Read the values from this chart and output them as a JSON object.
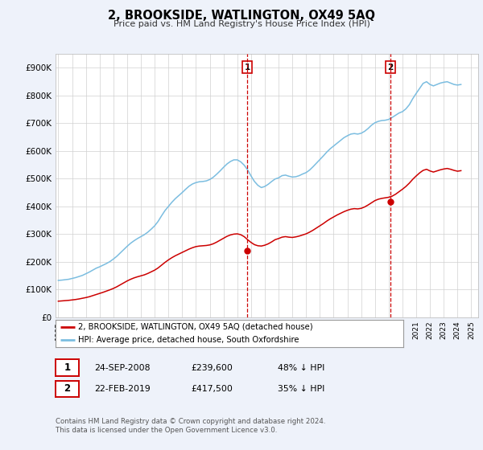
{
  "title": "2, BROOKSIDE, WATLINGTON, OX49 5AQ",
  "subtitle": "Price paid vs. HM Land Registry's House Price Index (HPI)",
  "hpi_color": "#7bbde0",
  "price_color": "#cc0000",
  "annotation_color": "#cc0000",
  "bg_color": "#eef2fa",
  "plot_bg": "#ffffff",
  "ylim": [
    0,
    950000
  ],
  "yticks": [
    0,
    100000,
    200000,
    300000,
    400000,
    500000,
    600000,
    700000,
    800000,
    900000
  ],
  "ytick_labels": [
    "£0",
    "£100K",
    "£200K",
    "£300K",
    "£400K",
    "£500K",
    "£600K",
    "£700K",
    "£800K",
    "£900K"
  ],
  "xlim_start": 1994.8,
  "xlim_end": 2025.5,
  "xtick_years": [
    1995,
    1996,
    1997,
    1998,
    1999,
    2000,
    2001,
    2002,
    2003,
    2004,
    2005,
    2006,
    2007,
    2008,
    2009,
    2010,
    2011,
    2012,
    2013,
    2014,
    2015,
    2016,
    2017,
    2018,
    2019,
    2020,
    2021,
    2022,
    2023,
    2024,
    2025
  ],
  "purchase1_x": 2008.73,
  "purchase1_y": 239600,
  "purchase1_label": "1",
  "purchase2_x": 2019.13,
  "purchase2_y": 417500,
  "purchase2_label": "2",
  "legend_label1": "2, BROOKSIDE, WATLINGTON, OX49 5AQ (detached house)",
  "legend_label2": "HPI: Average price, detached house, South Oxfordshire",
  "table_row1": [
    "1",
    "24-SEP-2008",
    "£239,600",
    "48% ↓ HPI"
  ],
  "table_row2": [
    "2",
    "22-FEB-2019",
    "£417,500",
    "35% ↓ HPI"
  ],
  "footer": "Contains HM Land Registry data © Crown copyright and database right 2024.\nThis data is licensed under the Open Government Licence v3.0.",
  "hpi_years": [
    1995.0,
    1995.25,
    1995.5,
    1995.75,
    1996.0,
    1996.25,
    1996.5,
    1996.75,
    1997.0,
    1997.25,
    1997.5,
    1997.75,
    1998.0,
    1998.25,
    1998.5,
    1998.75,
    1999.0,
    1999.25,
    1999.5,
    1999.75,
    2000.0,
    2000.25,
    2000.5,
    2000.75,
    2001.0,
    2001.25,
    2001.5,
    2001.75,
    2002.0,
    2002.25,
    2002.5,
    2002.75,
    2003.0,
    2003.25,
    2003.5,
    2003.75,
    2004.0,
    2004.25,
    2004.5,
    2004.75,
    2005.0,
    2005.25,
    2005.5,
    2005.75,
    2006.0,
    2006.25,
    2006.5,
    2006.75,
    2007.0,
    2007.25,
    2007.5,
    2007.75,
    2008.0,
    2008.25,
    2008.5,
    2008.75,
    2009.0,
    2009.25,
    2009.5,
    2009.75,
    2010.0,
    2010.25,
    2010.5,
    2010.75,
    2011.0,
    2011.25,
    2011.5,
    2011.75,
    2012.0,
    2012.25,
    2012.5,
    2012.75,
    2013.0,
    2013.25,
    2013.5,
    2013.75,
    2014.0,
    2014.25,
    2014.5,
    2014.75,
    2015.0,
    2015.25,
    2015.5,
    2015.75,
    2016.0,
    2016.25,
    2016.5,
    2016.75,
    2017.0,
    2017.25,
    2017.5,
    2017.75,
    2018.0,
    2018.25,
    2018.5,
    2018.75,
    2019.0,
    2019.25,
    2019.5,
    2019.75,
    2020.0,
    2020.25,
    2020.5,
    2020.75,
    2021.0,
    2021.25,
    2021.5,
    2021.75,
    2022.0,
    2022.25,
    2022.5,
    2022.75,
    2023.0,
    2023.25,
    2023.5,
    2023.75,
    2024.0,
    2024.25
  ],
  "hpi_values": [
    133000,
    134000,
    135500,
    137000,
    140000,
    143000,
    147000,
    151000,
    157000,
    163000,
    170000,
    177000,
    182000,
    188000,
    194000,
    201000,
    210000,
    220000,
    232000,
    244000,
    256000,
    267000,
    276000,
    284000,
    291000,
    298000,
    307000,
    318000,
    330000,
    346000,
    366000,
    385000,
    400000,
    415000,
    428000,
    439000,
    450000,
    462000,
    473000,
    481000,
    486000,
    489000,
    490000,
    492000,
    497000,
    505000,
    516000,
    528000,
    541000,
    553000,
    562000,
    568000,
    568000,
    561000,
    549000,
    532000,
    510000,
    490000,
    476000,
    468000,
    472000,
    480000,
    490000,
    499000,
    503000,
    511000,
    513000,
    509000,
    506000,
    507000,
    511000,
    517000,
    522000,
    531000,
    543000,
    556000,
    569000,
    582000,
    596000,
    608000,
    618000,
    628000,
    638000,
    648000,
    655000,
    661000,
    663000,
    661000,
    664000,
    671000,
    681000,
    693000,
    702000,
    707000,
    710000,
    711000,
    714000,
    721000,
    729000,
    737000,
    742000,
    752000,
    767000,
    789000,
    808000,
    826000,
    844000,
    850000,
    840000,
    835000,
    840000,
    845000,
    848000,
    850000,
    845000,
    840000,
    838000,
    840000
  ],
  "price_years": [
    1995.0,
    1995.25,
    1995.5,
    1995.75,
    1996.0,
    1996.25,
    1996.5,
    1996.75,
    1997.0,
    1997.25,
    1997.5,
    1997.75,
    1998.0,
    1998.25,
    1998.5,
    1998.75,
    1999.0,
    1999.25,
    1999.5,
    1999.75,
    2000.0,
    2000.25,
    2000.5,
    2000.75,
    2001.0,
    2001.25,
    2001.5,
    2001.75,
    2002.0,
    2002.25,
    2002.5,
    2002.75,
    2003.0,
    2003.25,
    2003.5,
    2003.75,
    2004.0,
    2004.25,
    2004.5,
    2004.75,
    2005.0,
    2005.25,
    2005.5,
    2005.75,
    2006.0,
    2006.25,
    2006.5,
    2006.75,
    2007.0,
    2007.25,
    2007.5,
    2007.75,
    2008.0,
    2008.25,
    2008.5,
    2008.75,
    2009.0,
    2009.25,
    2009.5,
    2009.75,
    2010.0,
    2010.25,
    2010.5,
    2010.75,
    2011.0,
    2011.25,
    2011.5,
    2011.75,
    2012.0,
    2012.25,
    2012.5,
    2012.75,
    2013.0,
    2013.25,
    2013.5,
    2013.75,
    2014.0,
    2014.25,
    2014.5,
    2014.75,
    2015.0,
    2015.25,
    2015.5,
    2015.75,
    2016.0,
    2016.25,
    2016.5,
    2016.75,
    2017.0,
    2017.25,
    2017.5,
    2017.75,
    2018.0,
    2018.25,
    2018.5,
    2018.75,
    2019.0,
    2019.25,
    2019.5,
    2019.75,
    2020.0,
    2020.25,
    2020.5,
    2020.75,
    2021.0,
    2021.25,
    2021.5,
    2021.75,
    2022.0,
    2022.25,
    2022.5,
    2022.75,
    2023.0,
    2023.25,
    2023.5,
    2023.75,
    2024.0,
    2024.25
  ],
  "price_values": [
    58000,
    59000,
    60000,
    61000,
    62500,
    64000,
    66000,
    68500,
    71000,
    74000,
    78000,
    82000,
    86000,
    90000,
    94500,
    99000,
    104000,
    110000,
    117000,
    124000,
    131000,
    137000,
    142000,
    146000,
    149500,
    153000,
    158000,
    164000,
    170000,
    178000,
    188000,
    198000,
    207000,
    215000,
    222000,
    228000,
    234000,
    240000,
    246000,
    251000,
    255000,
    257000,
    258000,
    259000,
    261000,
    265000,
    271000,
    278000,
    285000,
    292000,
    297000,
    300000,
    301000,
    298000,
    291000,
    280000,
    270000,
    262000,
    258000,
    257000,
    260000,
    265000,
    272000,
    280000,
    284000,
    289000,
    291000,
    289000,
    288000,
    290000,
    293000,
    297000,
    301000,
    307000,
    314000,
    322000,
    330000,
    338000,
    347000,
    355000,
    362000,
    369000,
    375000,
    381000,
    386000,
    390000,
    392000,
    391000,
    393000,
    398000,
    405000,
    413000,
    421000,
    426000,
    429000,
    431000,
    433000,
    437000,
    444000,
    453000,
    462000,
    472000,
    484000,
    498000,
    510000,
    521000,
    530000,
    534000,
    528000,
    524000,
    528000,
    532000,
    535000,
    537000,
    534000,
    530000,
    527000,
    529000
  ]
}
